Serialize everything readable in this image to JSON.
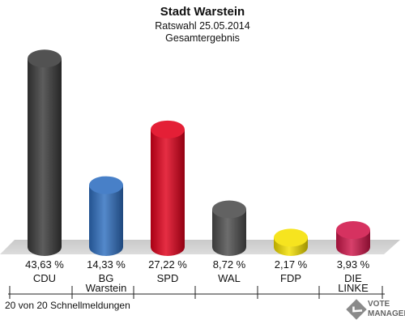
{
  "chart_data": {
    "type": "bar",
    "title": "Stadt Warstein",
    "subtitle_lines": [
      "Ratswahl 25.05.2014",
      "Gesamtergebnis"
    ],
    "categories": [
      [
        "CDU"
      ],
      [
        "BG",
        "Warstein"
      ],
      [
        "SPD"
      ],
      [
        "WAL"
      ],
      [
        "FDP"
      ],
      [
        "DIE",
        "LINKE"
      ]
    ],
    "values": [
      43.63,
      14.33,
      27.22,
      8.72,
      2.17,
      3.93
    ],
    "value_labels": [
      "43,63 %",
      "14,33 %",
      "27,22 %",
      "8,72 %",
      "2,17 %",
      "3,93 %"
    ],
    "colors": [
      "#3a3a3a",
      "#2f6fc0",
      "#e0001b",
      "#4d4d4d",
      "#f5e000",
      "#d0164a"
    ],
    "ylim": [
      0,
      45
    ],
    "footer": "20 von 20 Schnellmeldungen"
  },
  "logo": {
    "lines": [
      "VOTE",
      "MANAGER"
    ]
  }
}
